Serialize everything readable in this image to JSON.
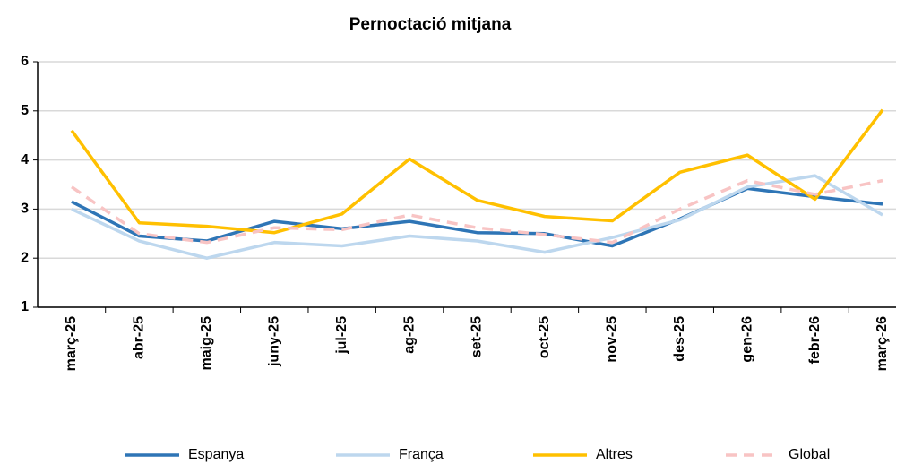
{
  "chart_data": {
    "type": "line",
    "title": "Pernoctació mitjana",
    "categories": [
      "març-25",
      "abr-25",
      "maig-25",
      "juny-25",
      "jul-25",
      "ag-25",
      "set-25",
      "oct-25",
      "nov-25",
      "des-25",
      "gen-26",
      "febr-26",
      "març-26"
    ],
    "series": [
      {
        "name": "Espanya",
        "color": "#2e75b6",
        "values": [
          3.15,
          2.45,
          2.35,
          2.75,
          2.6,
          2.75,
          2.52,
          2.5,
          2.25,
          2.8,
          3.42,
          3.25,
          3.1
        ]
      },
      {
        "name": "França",
        "color": "#bdd7ee",
        "values": [
          3.0,
          2.35,
          2.0,
          2.32,
          2.25,
          2.45,
          2.35,
          2.12,
          2.42,
          2.78,
          3.45,
          3.68,
          2.88
        ]
      },
      {
        "name": "Altres",
        "color": "#ffc000",
        "values": [
          4.6,
          2.72,
          2.65,
          2.52,
          2.9,
          4.02,
          3.18,
          2.85,
          2.76,
          3.75,
          4.1,
          3.2,
          5.02
        ]
      },
      {
        "name": "Global",
        "color": "#f8c4c4",
        "dashed": true,
        "values": [
          3.45,
          2.5,
          2.32,
          2.62,
          2.58,
          2.88,
          2.62,
          2.48,
          2.32,
          3.0,
          3.58,
          3.3,
          3.58
        ]
      }
    ],
    "ylim": [
      1,
      6
    ],
    "yticks": [
      1,
      2,
      3,
      4,
      5,
      6
    ],
    "grid": true,
    "legend": "bottom"
  }
}
